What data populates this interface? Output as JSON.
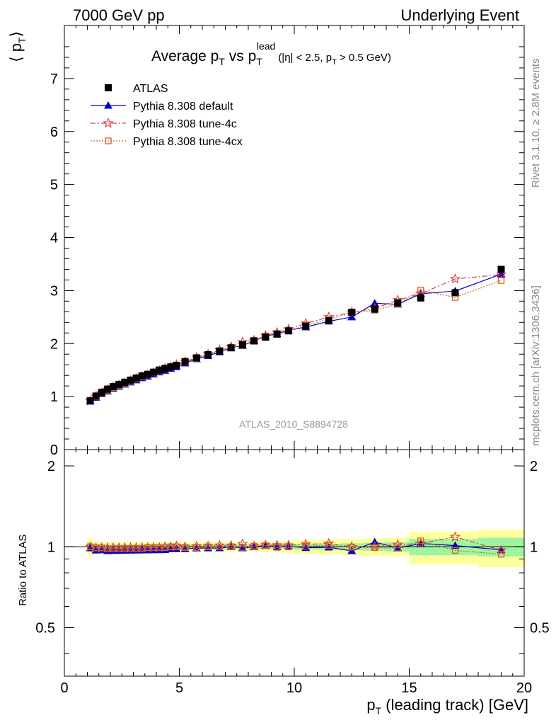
{
  "header": {
    "left": "7000 GeV pp",
    "right": "Underlying Event"
  },
  "side_labels": {
    "rivet": "Rivet 3.1.10, ≥ 2.8M events",
    "mcplots": "mcplots.cern.ch [arXiv:1306.3436]"
  },
  "plot_title": {
    "main": "Average p",
    "main_sub": "T",
    "vs": " vs p",
    "vs_sub": "T",
    "vs_sup": "lead",
    "cuts_a": "(|η| < 2.5, p",
    "cuts_sub": "T",
    "cuts_b": " > 0.5 GeV)"
  },
  "analysis_label": "ATLAS_2010_S8894728",
  "ylabel_top": "⟨ p",
  "ylabel_top_sub": "T",
  "ylabel_top_close": "⟩",
  "ylabel_bottom": "Ratio to ATLAS",
  "xlabel_main": "p",
  "xlabel_sub": "T",
  "xlabel_rest": " (leading track) [GeV]",
  "colors": {
    "data": "#000000",
    "default": "#0000cc",
    "tune4c": "#e03c3c",
    "tune4cx": "#c8641e",
    "band_inner": "#9ef59e",
    "band_outer": "#ffff9e"
  },
  "chart_data": {
    "type": "line",
    "x_axis": {
      "range": [
        0,
        20
      ],
      "ticks": [
        "0",
        "5",
        "10",
        "15",
        "20"
      ]
    },
    "y_axis_top": {
      "range": [
        0,
        8
      ],
      "ticks": [
        "0",
        "1",
        "2",
        "3",
        "4",
        "5",
        "6",
        "7"
      ]
    },
    "y_axis_bottom": {
      "range": [
        0.33,
        2.3
      ],
      "scale": "log",
      "ticks": [
        "0.5",
        "1",
        "2"
      ]
    },
    "legend_position": "top-left",
    "x": [
      1.125,
      1.375,
      1.625,
      1.875,
      2.125,
      2.375,
      2.625,
      2.875,
      3.125,
      3.375,
      3.625,
      3.875,
      4.125,
      4.375,
      4.625,
      4.875,
      5.25,
      5.75,
      6.25,
      6.75,
      7.25,
      7.75,
      8.25,
      8.75,
      9.25,
      9.75,
      10.5,
      11.5,
      12.5,
      13.5,
      14.5,
      15.5,
      17.0,
      19.0
    ],
    "series": [
      {
        "name": "ATLAS",
        "marker": "square",
        "values": [
          0.92,
          1.01,
          1.08,
          1.14,
          1.19,
          1.23,
          1.27,
          1.31,
          1.35,
          1.39,
          1.42,
          1.46,
          1.5,
          1.53,
          1.56,
          1.59,
          1.66,
          1.73,
          1.79,
          1.86,
          1.92,
          1.98,
          2.05,
          2.12,
          2.18,
          2.24,
          2.33,
          2.43,
          2.59,
          2.65,
          2.77,
          2.86,
          2.96,
          3.4
        ]
      },
      {
        "name": "Pythia 8.308 default",
        "marker": "triangle",
        "values": [
          0.91,
          0.98,
          1.05,
          1.1,
          1.15,
          1.19,
          1.23,
          1.27,
          1.31,
          1.35,
          1.38,
          1.42,
          1.46,
          1.49,
          1.53,
          1.56,
          1.63,
          1.71,
          1.77,
          1.84,
          1.92,
          1.96,
          2.05,
          2.14,
          2.18,
          2.25,
          2.31,
          2.42,
          2.5,
          2.76,
          2.74,
          2.94,
          2.99,
          3.31
        ]
      },
      {
        "name": "Pythia 8.308 tune-4c",
        "marker": "star",
        "values": [
          0.92,
          1.0,
          1.07,
          1.13,
          1.18,
          1.22,
          1.26,
          1.3,
          1.34,
          1.38,
          1.41,
          1.45,
          1.49,
          1.53,
          1.56,
          1.6,
          1.66,
          1.74,
          1.8,
          1.88,
          1.94,
          2.03,
          2.06,
          2.15,
          2.21,
          2.27,
          2.38,
          2.5,
          2.59,
          2.66,
          2.82,
          2.94,
          3.22,
          3.3
        ]
      },
      {
        "name": "Pythia 8.308 tune-4cx",
        "marker": "open-square",
        "values": [
          0.92,
          1.0,
          1.07,
          1.12,
          1.17,
          1.21,
          1.25,
          1.29,
          1.33,
          1.37,
          1.41,
          1.45,
          1.49,
          1.52,
          1.56,
          1.59,
          1.65,
          1.72,
          1.79,
          1.86,
          1.92,
          1.97,
          2.06,
          2.14,
          2.17,
          2.24,
          2.34,
          2.46,
          2.58,
          2.63,
          2.74,
          3.01,
          2.87,
          3.19
        ]
      }
    ],
    "ratio_band": {
      "x_edges": [
        1.0,
        1.25,
        1.5,
        1.75,
        2.0,
        2.25,
        2.5,
        2.75,
        3.0,
        3.25,
        3.5,
        3.75,
        4.0,
        4.25,
        4.5,
        4.75,
        5.0,
        5.5,
        6.0,
        6.5,
        7.0,
        7.5,
        8.0,
        8.5,
        9.0,
        9.5,
        10.0,
        11.0,
        12.0,
        13.0,
        14.0,
        15.0,
        16.0,
        18.0,
        20.0
      ],
      "inner_halfwidth": [
        0.035,
        0.025,
        0.02,
        0.02,
        0.02,
        0.02,
        0.02,
        0.02,
        0.02,
        0.02,
        0.02,
        0.02,
        0.02,
        0.02,
        0.02,
        0.02,
        0.02,
        0.02,
        0.02,
        0.02,
        0.02,
        0.02,
        0.02,
        0.02,
        0.02,
        0.02,
        0.025,
        0.025,
        0.03,
        0.035,
        0.04,
        0.07,
        0.07,
        0.08
      ],
      "outer_halfwidth": [
        0.08,
        0.05,
        0.04,
        0.04,
        0.04,
        0.04,
        0.04,
        0.04,
        0.04,
        0.04,
        0.04,
        0.04,
        0.04,
        0.04,
        0.04,
        0.04,
        0.04,
        0.04,
        0.04,
        0.04,
        0.04,
        0.04,
        0.04,
        0.045,
        0.045,
        0.05,
        0.06,
        0.065,
        0.07,
        0.075,
        0.08,
        0.14,
        0.14,
        0.16
      ]
    }
  }
}
